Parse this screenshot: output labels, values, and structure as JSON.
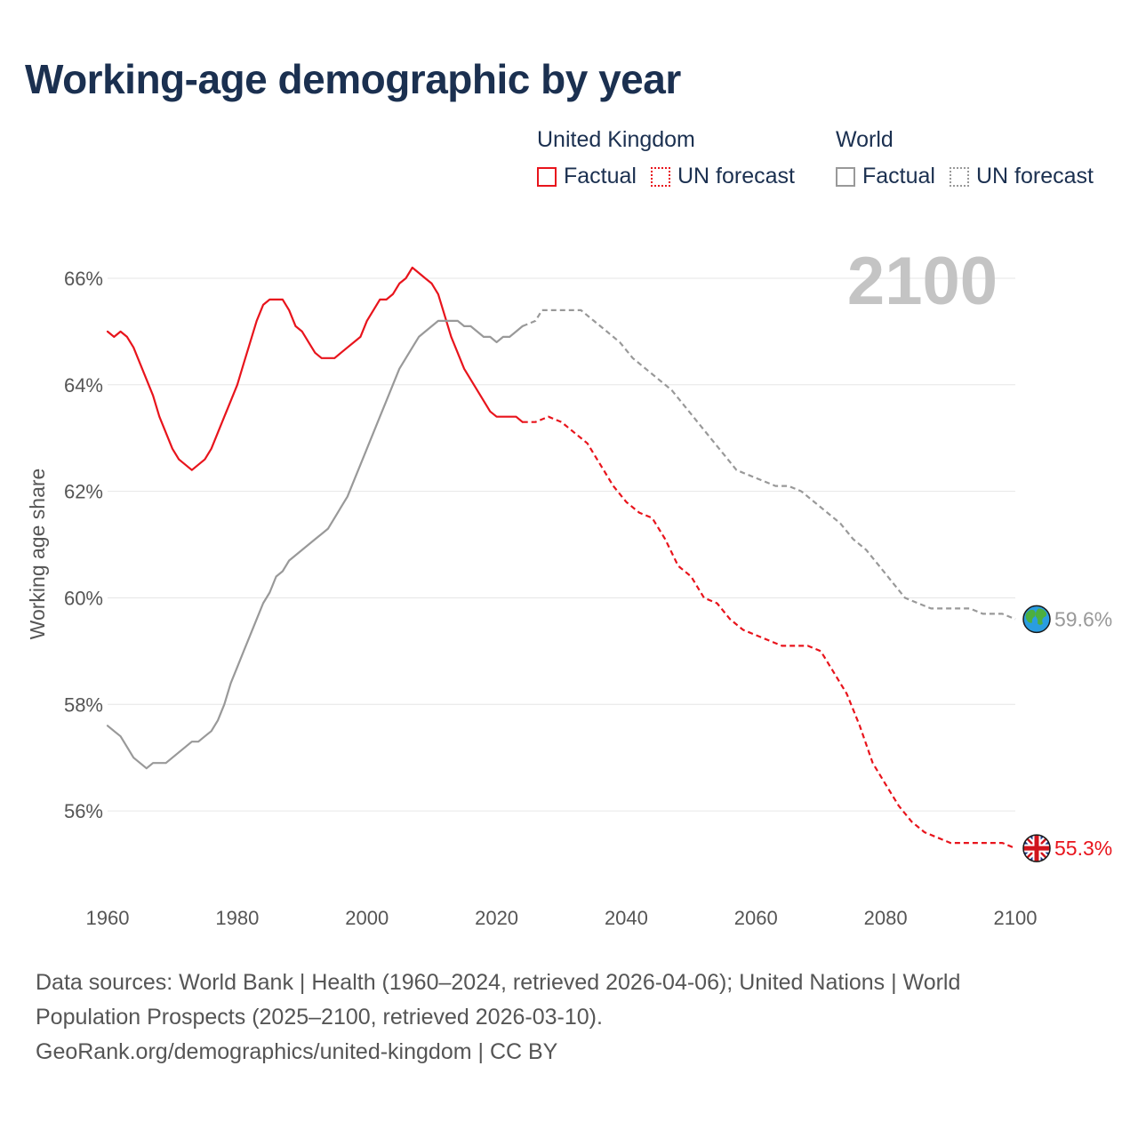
{
  "title": "Working-age demographic by year",
  "legend": {
    "groups": [
      {
        "name": "United Kingdom",
        "factual": "Factual",
        "forecast": "UN forecast"
      },
      {
        "name": "World",
        "factual": "Factual",
        "forecast": "UN forecast"
      }
    ]
  },
  "year_display": "2100",
  "colors": {
    "uk": "#e8141c",
    "world": "#999999",
    "title": "#1b3050"
  },
  "icons": {
    "uk": "uk-flag-icon",
    "world": "globe-icon"
  },
  "end_labels": {
    "uk": "55.3%",
    "world": "59.6%"
  },
  "footer": {
    "line1": "Data sources: World Bank | Health (1960–2024, retrieved 2026-04-06); United Nations | World Population Prospects (2025–2100, retrieved 2026-03-10).",
    "line2": "GeoRank.org/demographics/united-kingdom | CC BY"
  },
  "chart_data": {
    "type": "line",
    "title": "Working-age demographic by year",
    "xlabel": "",
    "ylabel": "Working age share",
    "xlim": [
      1960,
      2100
    ],
    "ylim": [
      54.5,
      66.5
    ],
    "xticks": [
      1960,
      1980,
      2000,
      2020,
      2040,
      2060,
      2080,
      2100
    ],
    "yticks": [
      56,
      58,
      60,
      62,
      64,
      66
    ],
    "ytick_labels": [
      "56%",
      "58%",
      "60%",
      "62%",
      "64%",
      "66%"
    ],
    "grid": "horizontal",
    "series": [
      {
        "name": "United Kingdom",
        "segment": "Factual",
        "points": [
          [
            1960,
            65.0
          ],
          [
            1961,
            64.9
          ],
          [
            1962,
            65.0
          ],
          [
            1963,
            64.9
          ],
          [
            1964,
            64.7
          ],
          [
            1965,
            64.4
          ],
          [
            1966,
            64.1
          ],
          [
            1967,
            63.8
          ],
          [
            1968,
            63.4
          ],
          [
            1969,
            63.1
          ],
          [
            1970,
            62.8
          ],
          [
            1971,
            62.6
          ],
          [
            1972,
            62.5
          ],
          [
            1973,
            62.4
          ],
          [
            1974,
            62.5
          ],
          [
            1975,
            62.6
          ],
          [
            1976,
            62.8
          ],
          [
            1977,
            63.1
          ],
          [
            1978,
            63.4
          ],
          [
            1979,
            63.7
          ],
          [
            1980,
            64.0
          ],
          [
            1981,
            64.4
          ],
          [
            1982,
            64.8
          ],
          [
            1983,
            65.2
          ],
          [
            1984,
            65.5
          ],
          [
            1985,
            65.6
          ],
          [
            1986,
            65.6
          ],
          [
            1987,
            65.6
          ],
          [
            1988,
            65.4
          ],
          [
            1989,
            65.1
          ],
          [
            1990,
            65.0
          ],
          [
            1991,
            64.8
          ],
          [
            1992,
            64.6
          ],
          [
            1993,
            64.5
          ],
          [
            1994,
            64.5
          ],
          [
            1995,
            64.5
          ],
          [
            1996,
            64.6
          ],
          [
            1997,
            64.7
          ],
          [
            1998,
            64.8
          ],
          [
            1999,
            64.9
          ],
          [
            2000,
            65.2
          ],
          [
            2001,
            65.4
          ],
          [
            2002,
            65.6
          ],
          [
            2003,
            65.6
          ],
          [
            2004,
            65.7
          ],
          [
            2005,
            65.9
          ],
          [
            2006,
            66.0
          ],
          [
            2007,
            66.2
          ],
          [
            2008,
            66.1
          ],
          [
            2009,
            66.0
          ],
          [
            2010,
            65.9
          ],
          [
            2011,
            65.7
          ],
          [
            2012,
            65.3
          ],
          [
            2013,
            64.9
          ],
          [
            2014,
            64.6
          ],
          [
            2015,
            64.3
          ],
          [
            2016,
            64.1
          ],
          [
            2017,
            63.9
          ],
          [
            2018,
            63.7
          ],
          [
            2019,
            63.5
          ],
          [
            2020,
            63.4
          ],
          [
            2021,
            63.4
          ],
          [
            2022,
            63.4
          ],
          [
            2023,
            63.4
          ],
          [
            2024,
            63.3
          ]
        ]
      },
      {
        "name": "United Kingdom",
        "segment": "UN forecast",
        "points": [
          [
            2024,
            63.3
          ],
          [
            2026,
            63.3
          ],
          [
            2028,
            63.4
          ],
          [
            2030,
            63.3
          ],
          [
            2032,
            63.1
          ],
          [
            2034,
            62.9
          ],
          [
            2036,
            62.5
          ],
          [
            2038,
            62.1
          ],
          [
            2040,
            61.8
          ],
          [
            2042,
            61.6
          ],
          [
            2044,
            61.5
          ],
          [
            2046,
            61.1
          ],
          [
            2048,
            60.6
          ],
          [
            2050,
            60.4
          ],
          [
            2052,
            60.0
          ],
          [
            2054,
            59.9
          ],
          [
            2056,
            59.6
          ],
          [
            2058,
            59.4
          ],
          [
            2060,
            59.3
          ],
          [
            2062,
            59.2
          ],
          [
            2064,
            59.1
          ],
          [
            2066,
            59.1
          ],
          [
            2068,
            59.1
          ],
          [
            2070,
            59.0
          ],
          [
            2072,
            58.6
          ],
          [
            2074,
            58.2
          ],
          [
            2076,
            57.6
          ],
          [
            2078,
            56.9
          ],
          [
            2080,
            56.5
          ],
          [
            2082,
            56.1
          ],
          [
            2084,
            55.8
          ],
          [
            2086,
            55.6
          ],
          [
            2088,
            55.5
          ],
          [
            2090,
            55.4
          ],
          [
            2092,
            55.4
          ],
          [
            2094,
            55.4
          ],
          [
            2096,
            55.4
          ],
          [
            2098,
            55.4
          ],
          [
            2100,
            55.3
          ]
        ]
      },
      {
        "name": "World",
        "segment": "Factual",
        "points": [
          [
            1960,
            57.6
          ],
          [
            1961,
            57.5
          ],
          [
            1962,
            57.4
          ],
          [
            1963,
            57.2
          ],
          [
            1964,
            57.0
          ],
          [
            1965,
            56.9
          ],
          [
            1966,
            56.8
          ],
          [
            1967,
            56.9
          ],
          [
            1968,
            56.9
          ],
          [
            1969,
            56.9
          ],
          [
            1970,
            57.0
          ],
          [
            1971,
            57.1
          ],
          [
            1972,
            57.2
          ],
          [
            1973,
            57.3
          ],
          [
            1974,
            57.3
          ],
          [
            1975,
            57.4
          ],
          [
            1976,
            57.5
          ],
          [
            1977,
            57.7
          ],
          [
            1978,
            58.0
          ],
          [
            1979,
            58.4
          ],
          [
            1980,
            58.7
          ],
          [
            1981,
            59.0
          ],
          [
            1982,
            59.3
          ],
          [
            1983,
            59.6
          ],
          [
            1984,
            59.9
          ],
          [
            1985,
            60.1
          ],
          [
            1986,
            60.4
          ],
          [
            1987,
            60.5
          ],
          [
            1988,
            60.7
          ],
          [
            1989,
            60.8
          ],
          [
            1990,
            60.9
          ],
          [
            1991,
            61.0
          ],
          [
            1992,
            61.1
          ],
          [
            1993,
            61.2
          ],
          [
            1994,
            61.3
          ],
          [
            1995,
            61.5
          ],
          [
            1996,
            61.7
          ],
          [
            1997,
            61.9
          ],
          [
            1998,
            62.2
          ],
          [
            1999,
            62.5
          ],
          [
            2000,
            62.8
          ],
          [
            2001,
            63.1
          ],
          [
            2002,
            63.4
          ],
          [
            2003,
            63.7
          ],
          [
            2004,
            64.0
          ],
          [
            2005,
            64.3
          ],
          [
            2006,
            64.5
          ],
          [
            2007,
            64.7
          ],
          [
            2008,
            64.9
          ],
          [
            2009,
            65.0
          ],
          [
            2010,
            65.1
          ],
          [
            2011,
            65.2
          ],
          [
            2012,
            65.2
          ],
          [
            2013,
            65.2
          ],
          [
            2014,
            65.2
          ],
          [
            2015,
            65.1
          ],
          [
            2016,
            65.1
          ],
          [
            2017,
            65.0
          ],
          [
            2018,
            64.9
          ],
          [
            2019,
            64.9
          ],
          [
            2020,
            64.8
          ],
          [
            2021,
            64.9
          ],
          [
            2022,
            64.9
          ],
          [
            2023,
            65.0
          ],
          [
            2024,
            65.1
          ]
        ]
      },
      {
        "name": "World",
        "segment": "UN forecast",
        "points": [
          [
            2024,
            65.1
          ],
          [
            2026,
            65.2
          ],
          [
            2027,
            65.4
          ],
          [
            2030,
            65.4
          ],
          [
            2033,
            65.4
          ],
          [
            2035,
            65.2
          ],
          [
            2037,
            65.0
          ],
          [
            2039,
            64.8
          ],
          [
            2041,
            64.5
          ],
          [
            2043,
            64.3
          ],
          [
            2045,
            64.1
          ],
          [
            2047,
            63.9
          ],
          [
            2049,
            63.6
          ],
          [
            2051,
            63.3
          ],
          [
            2053,
            63.0
          ],
          [
            2055,
            62.7
          ],
          [
            2057,
            62.4
          ],
          [
            2059,
            62.3
          ],
          [
            2061,
            62.2
          ],
          [
            2063,
            62.1
          ],
          [
            2065,
            62.1
          ],
          [
            2067,
            62.0
          ],
          [
            2069,
            61.8
          ],
          [
            2071,
            61.6
          ],
          [
            2073,
            61.4
          ],
          [
            2075,
            61.1
          ],
          [
            2077,
            60.9
          ],
          [
            2079,
            60.6
          ],
          [
            2081,
            60.3
          ],
          [
            2083,
            60.0
          ],
          [
            2085,
            59.9
          ],
          [
            2087,
            59.8
          ],
          [
            2090,
            59.8
          ],
          [
            2093,
            59.8
          ],
          [
            2095,
            59.7
          ],
          [
            2098,
            59.7
          ],
          [
            2100,
            59.6
          ]
        ]
      }
    ]
  }
}
